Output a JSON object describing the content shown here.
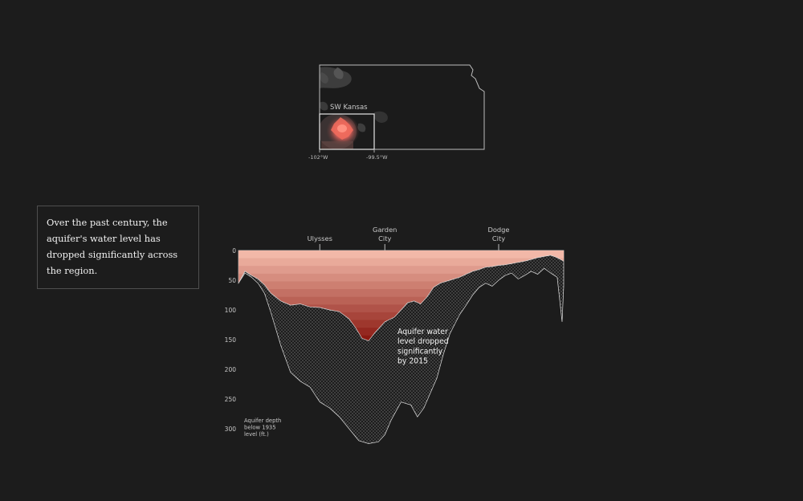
{
  "caption": "Over the past century, the aquifer's water level has dropped significantly across the region.",
  "map": {
    "region_label": "SW Kansas",
    "lon_labels": [
      "-102°W",
      "-99.5°W"
    ]
  },
  "chart_data": {
    "type": "area",
    "title": "",
    "cities": [
      {
        "name": [
          "Ulysses"
        ],
        "position": 0.25
      },
      {
        "name": [
          "Garden",
          "City"
        ],
        "position": 0.45
      },
      {
        "name": [
          "Dodge",
          "City"
        ],
        "position": 0.8
      }
    ],
    "y_axis": {
      "ticks": [
        0,
        50,
        100,
        150,
        200,
        250,
        300
      ],
      "ylim": [
        0,
        340
      ],
      "label": [
        "Aquifer depth",
        "below 1935",
        "level (ft.)"
      ]
    },
    "annotation": [
      "Aquifer water",
      "level dropped",
      "significantly",
      "by 2015"
    ],
    "colors": {
      "background": "#1c1c1c",
      "band_light": "#f2b8a8",
      "band_dark": "#8b1a12",
      "stipple": "#d8d8d8"
    },
    "series": [
      {
        "x": [
          0,
          0.02,
          0.04,
          0.06,
          0.08,
          0.1,
          0.13,
          0.16,
          0.19,
          0.22,
          0.25,
          0.28,
          0.31,
          0.34,
          0.36,
          0.38,
          0.4,
          0.42,
          0.45,
          0.48,
          0.5,
          0.52,
          0.54,
          0.56,
          0.58,
          0.6,
          0.62,
          0.65,
          0.68,
          0.7,
          0.72,
          0.74,
          0.76,
          0.78,
          0.8,
          0.82,
          0.84,
          0.86,
          0.88,
          0.9,
          0.92,
          0.94,
          0.96,
          0.98,
          1.0
        ],
        "values": [
          55,
          35,
          42,
          48,
          58,
          72,
          85,
          92,
          90,
          95,
          96,
          100,
          103,
          115,
          130,
          148,
          152,
          138,
          120,
          112,
          100,
          88,
          85,
          90,
          78,
          62,
          55,
          50,
          45,
          40,
          35,
          32,
          28,
          27,
          25,
          24,
          22,
          20,
          18,
          15,
          12,
          10,
          8,
          12,
          18
        ]
      },
      {
        "x": [
          0,
          0.02,
          0.04,
          0.06,
          0.08,
          0.1,
          0.13,
          0.16,
          0.19,
          0.22,
          0.25,
          0.28,
          0.31,
          0.34,
          0.37,
          0.4,
          0.43,
          0.45,
          0.47,
          0.5,
          0.53,
          0.55,
          0.57,
          0.59,
          0.61,
          0.63,
          0.65,
          0.68,
          0.7,
          0.72,
          0.74,
          0.76,
          0.78,
          0.8,
          0.82,
          0.84,
          0.86,
          0.88,
          0.9,
          0.92,
          0.94,
          0.96,
          0.98,
          0.995,
          1.0
        ],
        "values": [
          55,
          38,
          45,
          55,
          72,
          105,
          160,
          205,
          220,
          230,
          255,
          265,
          280,
          300,
          320,
          325,
          322,
          310,
          285,
          255,
          260,
          280,
          265,
          240,
          215,
          175,
          140,
          108,
          92,
          75,
          62,
          55,
          60,
          50,
          42,
          38,
          48,
          42,
          35,
          40,
          30,
          38,
          45,
          120,
          60
        ]
      }
    ]
  }
}
